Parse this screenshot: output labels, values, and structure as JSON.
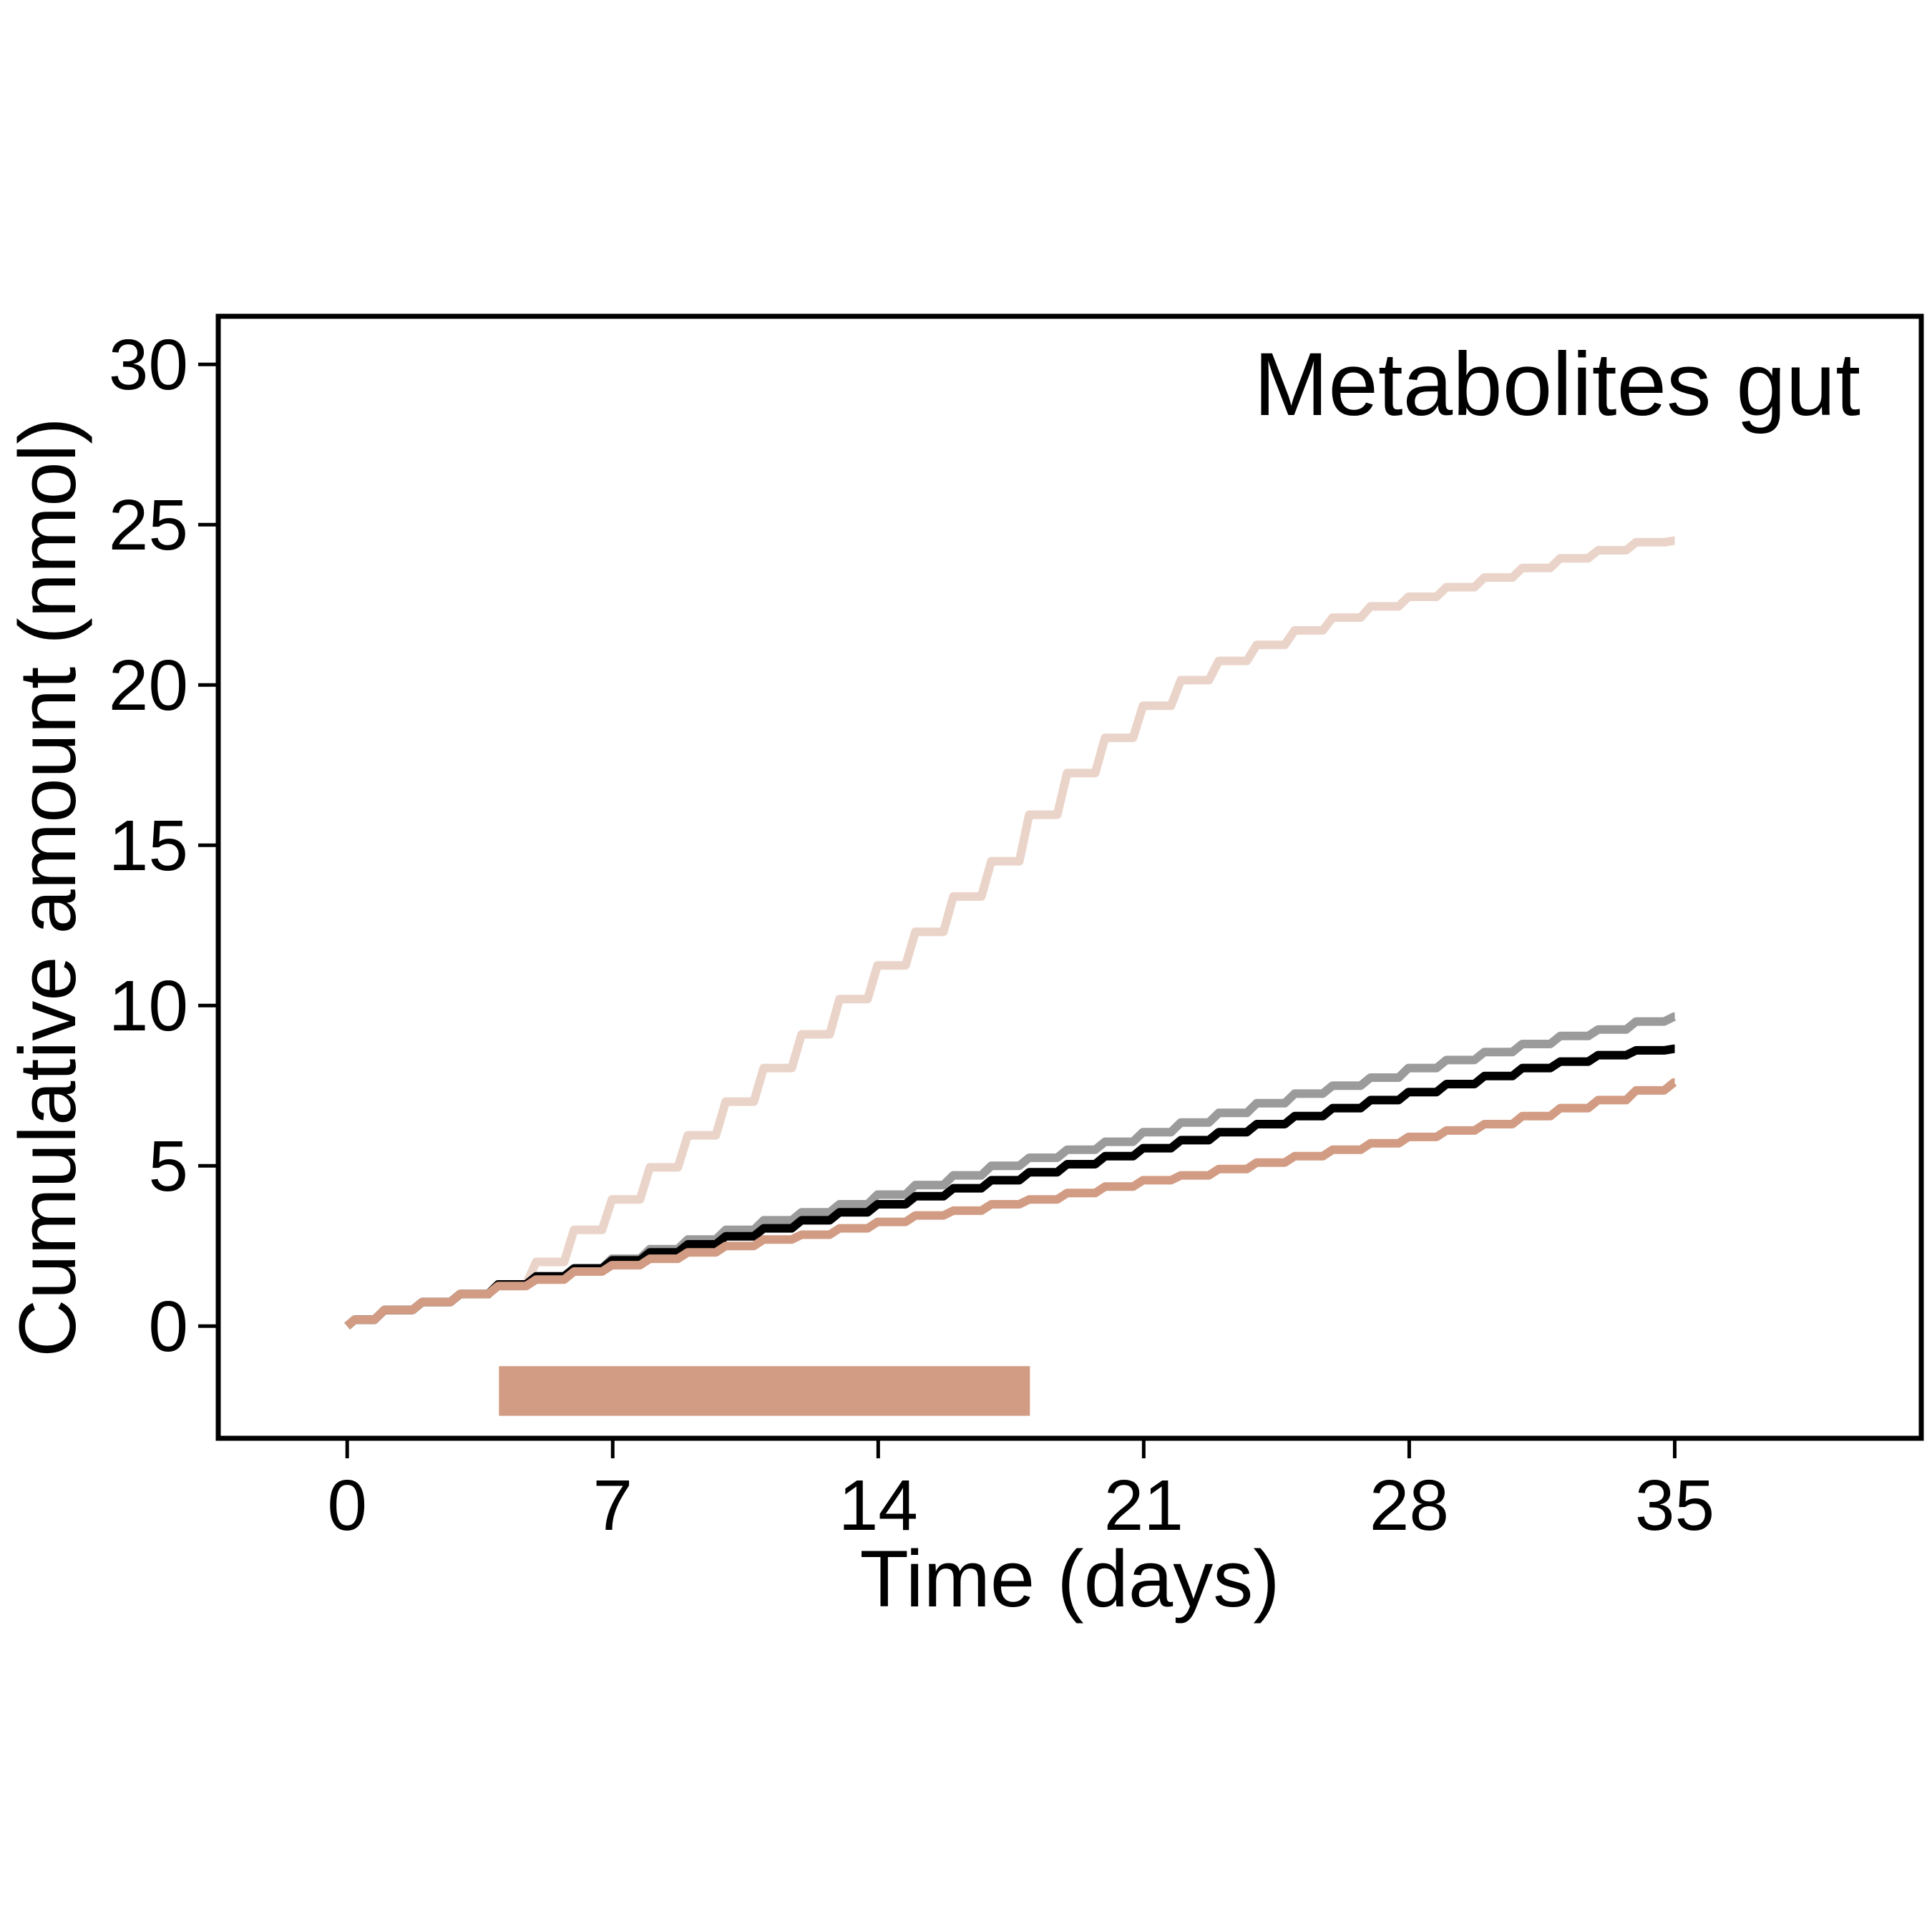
{
  "chart_data": {
    "type": "line",
    "title": "Metabolites gut",
    "xlabel": "Time (days)",
    "ylabel": "Cumulative amount (nmol)",
    "xlim": [
      -3.4,
      41.5
    ],
    "ylim": [
      -3.5,
      31.5
    ],
    "xticks": [
      "0",
      "7",
      "14",
      "21",
      "28",
      "35"
    ],
    "xtick_values": [
      0,
      7,
      14,
      21,
      28,
      35
    ],
    "yticks": [
      "0",
      "5",
      "10",
      "15",
      "20",
      "25",
      "30"
    ],
    "ytick_values": [
      0,
      5,
      10,
      15,
      20,
      25,
      30
    ],
    "grid": false,
    "legend": "none",
    "exposure_bar": {
      "x_start": 4,
      "x_end": 18,
      "y_range": [
        -2.8,
        -1.25
      ],
      "color": "#d29c84"
    },
    "series": [
      {
        "color": "#ead4ca",
        "x": [
          0,
          1,
          2,
          3,
          4,
          5,
          6,
          7,
          8,
          9,
          10,
          11,
          12,
          13,
          14,
          15,
          16,
          17,
          18,
          19,
          20,
          21,
          22,
          23,
          24,
          25,
          26,
          27,
          28,
          29,
          30,
          31,
          32,
          33,
          34,
          35
        ],
        "y": [
          0.2,
          0.5,
          0.75,
          1.0,
          1.3,
          2.0,
          3.0,
          3.95,
          4.95,
          5.95,
          7.0,
          8.05,
          9.1,
          10.2,
          11.25,
          12.3,
          13.4,
          14.5,
          15.95,
          17.25,
          18.35,
          19.35,
          20.15,
          20.75,
          21.25,
          21.7,
          22.1,
          22.45,
          22.75,
          23.05,
          23.35,
          23.65,
          23.95,
          24.2,
          24.45,
          24.5
        ]
      },
      {
        "color": "#9b9b9b",
        "x": [
          0,
          1,
          2,
          3,
          4,
          5,
          6,
          7,
          8,
          9,
          10,
          11,
          12,
          13,
          14,
          15,
          16,
          17,
          18,
          19,
          20,
          21,
          22,
          23,
          24,
          25,
          26,
          27,
          28,
          29,
          30,
          31,
          32,
          33,
          34,
          35
        ],
        "y": [
          0.2,
          0.5,
          0.75,
          1.0,
          1.3,
          1.55,
          1.8,
          2.1,
          2.4,
          2.7,
          3.0,
          3.3,
          3.55,
          3.8,
          4.1,
          4.4,
          4.7,
          5.0,
          5.25,
          5.5,
          5.75,
          6.05,
          6.35,
          6.65,
          6.95,
          7.25,
          7.5,
          7.75,
          8.05,
          8.3,
          8.55,
          8.8,
          9.05,
          9.25,
          9.5,
          9.65
        ]
      },
      {
        "color": "#000000",
        "x": [
          0,
          1,
          2,
          3,
          4,
          5,
          6,
          7,
          8,
          9,
          10,
          11,
          12,
          13,
          14,
          15,
          16,
          17,
          18,
          19,
          20,
          21,
          22,
          23,
          24,
          25,
          26,
          27,
          28,
          29,
          30,
          31,
          32,
          33,
          34,
          35
        ],
        "y": [
          0.2,
          0.5,
          0.75,
          1.0,
          1.3,
          1.55,
          1.8,
          2.05,
          2.3,
          2.55,
          2.8,
          3.05,
          3.3,
          3.55,
          3.8,
          4.05,
          4.3,
          4.55,
          4.8,
          5.05,
          5.3,
          5.55,
          5.8,
          6.05,
          6.3,
          6.55,
          6.8,
          7.05,
          7.3,
          7.55,
          7.8,
          8.05,
          8.25,
          8.45,
          8.6,
          8.65
        ]
      },
      {
        "color": "#d29c84",
        "x": [
          0,
          1,
          2,
          3,
          4,
          5,
          6,
          7,
          8,
          9,
          10,
          11,
          12,
          13,
          14,
          15,
          16,
          17,
          18,
          19,
          20,
          21,
          22,
          23,
          24,
          25,
          26,
          27,
          28,
          29,
          30,
          31,
          32,
          33,
          34,
          35
        ],
        "y": [
          0.2,
          0.5,
          0.75,
          1.0,
          1.25,
          1.45,
          1.7,
          1.9,
          2.1,
          2.3,
          2.5,
          2.7,
          2.85,
          3.05,
          3.25,
          3.45,
          3.6,
          3.8,
          3.95,
          4.15,
          4.35,
          4.55,
          4.7,
          4.9,
          5.1,
          5.3,
          5.5,
          5.7,
          5.9,
          6.1,
          6.3,
          6.55,
          6.8,
          7.05,
          7.35,
          7.6
        ]
      }
    ]
  }
}
